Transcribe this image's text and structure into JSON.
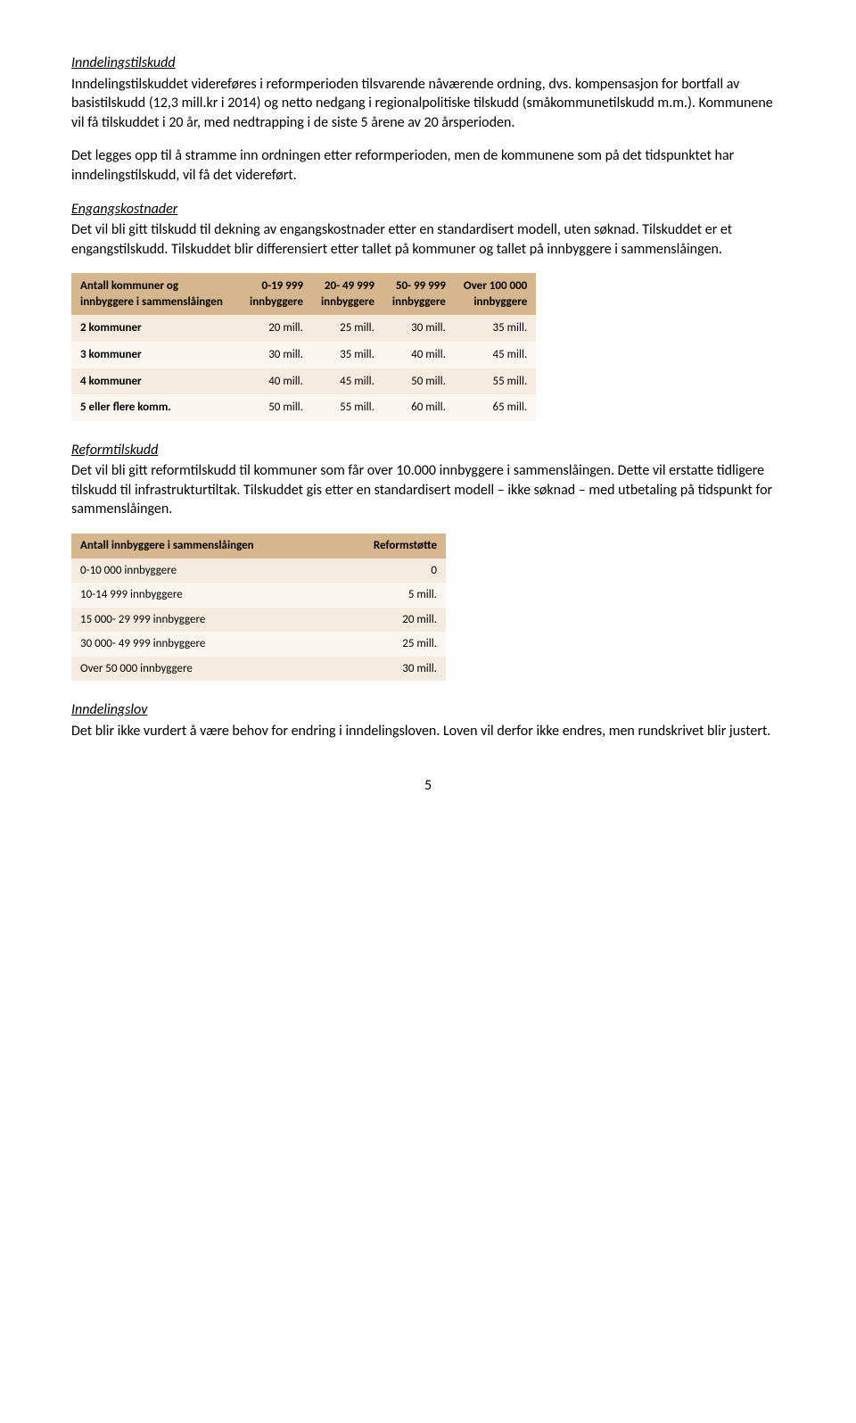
{
  "section1": {
    "title": "Inndelingstilskudd",
    "p1": "Inndelingstilskuddet videreføres i reformperioden tilsvarende nåværende ordning, dvs. kompensasjon for bortfall av basistilskudd (12,3 mill.kr i 2014) og netto nedgang i regionalpolitiske tilskudd (småkommunetilskudd m.m.). Kommunene vil få tilskuddet i 20 år, med nedtrapping i de siste 5 årene av 20 årsperioden.",
    "p2": "Det legges opp til å stramme inn ordningen etter reformperioden, men de kommunene som på det tidspunktet har inndelingstilskudd, vil få det videreført."
  },
  "section2": {
    "title": "Engangskostnader",
    "p1": "Det vil bli gitt tilskudd til dekning av engangskostnader etter en standardisert modell, uten søknad. Tilskuddet er et engangstilskudd. Tilskuddet blir differensiert etter tallet på kommuner og tallet på innbyggere i sammenslåingen."
  },
  "table1": {
    "headers": {
      "h0": "Antall kommuner og innbyggere i sammenslåingen",
      "h1a": "0-19 999",
      "h1b": "innbyggere",
      "h2a": "20- 49 999",
      "h2b": "innbyggere",
      "h3a": "50- 99 999",
      "h3b": "innbyggere",
      "h4a": "Over 100 000",
      "h4b": "innbyggere"
    },
    "rows": [
      {
        "label": "2 kommuner",
        "c1": "20 mill.",
        "c2": "25 mill.",
        "c3": "30 mill.",
        "c4": "35 mill."
      },
      {
        "label": "3 kommuner",
        "c1": "30 mill.",
        "c2": "35 mill.",
        "c3": "40 mill.",
        "c4": "45 mill."
      },
      {
        "label": "4 kommuner",
        "c1": "40 mill.",
        "c2": "45 mill.",
        "c3": "50 mill.",
        "c4": "55 mill."
      },
      {
        "label": "5 eller flere komm.",
        "c1": "50 mill.",
        "c2": "55 mill.",
        "c3": "60 mill.",
        "c4": "65 mill."
      }
    ]
  },
  "section3": {
    "title": "Reformtilskudd",
    "p1": "Det vil bli gitt reformtilskudd til kommuner som får over 10.000 innbyggere i sammenslåingen.  Dette vil erstatte tidligere tilskudd til infrastrukturtiltak.  Tilskuddet gis etter en standardisert modell – ikke søknad – med utbetaling på tidspunkt for sammenslåingen."
  },
  "table2": {
    "h0": "Antall innbyggere i sammenslåingen",
    "h1": "Reformstøtte",
    "rows": [
      {
        "label": "0-10 000 innbyggere",
        "val": "0"
      },
      {
        "label": "10-14 999 innbyggere",
        "val": "5 mill."
      },
      {
        "label": "15 000- 29 999 innbyggere",
        "val": "20 mill."
      },
      {
        "label": "30 000- 49 999 innbyggere",
        "val": "25 mill."
      },
      {
        "label": "Over 50 000 innbyggere",
        "val": "30 mill."
      }
    ]
  },
  "section4": {
    "title": "Inndelingslov",
    "p1": "Det blir ikke vurdert å være behov for endring i inndelingsloven.  Loven vil derfor ikke endres, men rundskrivet blir justert."
  },
  "pageNumber": "5"
}
